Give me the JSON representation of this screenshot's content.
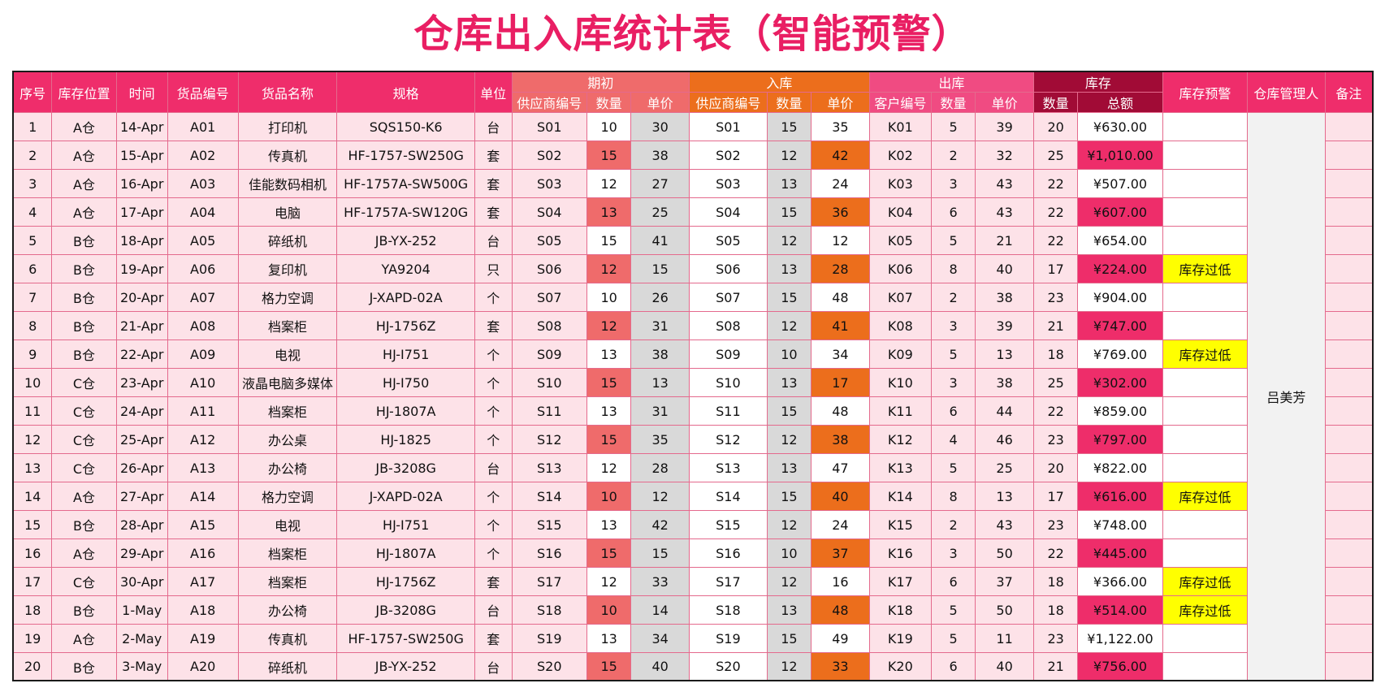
{
  "title": "仓库出入库统计表（智能预警）",
  "headers": {
    "seq": "序号",
    "location": "库存位置",
    "time": "时间",
    "code": "货品编号",
    "name": "货品名称",
    "spec": "规格",
    "unit": "单位",
    "opening": "期初",
    "inbound": "入库",
    "outbound": "出库",
    "stock": "库存",
    "alert": "库存预警",
    "manager": "仓库管理人",
    "remark": "备注",
    "supplier_code": "供应商编号",
    "qty": "数量",
    "price": "单价",
    "customer_code": "客户编号",
    "total": "总额"
  },
  "manager_name": "吕美芳",
  "colors": {
    "title": "#e91e63",
    "header_pink": "#ef2d6b",
    "opening_header": "#ef6b6b",
    "inbound_header": "#ec6e1c",
    "outbound_header": "#f04b82",
    "stock_header": "#a10b36",
    "row_fill": "#fde2e8",
    "highlight_red": "#ef6b6b",
    "highlight_orange": "#ec6e1c",
    "highlight_hot": "#ee2d6a",
    "alert_yellow": "#ffff00"
  },
  "rows": [
    {
      "seq": "1",
      "loc": "A仓",
      "date": "14-Apr",
      "code": "A01",
      "name": "打印机",
      "spec": "SQS150-K6",
      "unit": "台",
      "s_code": "S01",
      "o_qty": "10",
      "o_price": "30",
      "i_code": "S01",
      "i_qty": "15",
      "i_price": "35",
      "c_code": "K01",
      "out_qty": "5",
      "out_price": "39",
      "st_qty": "20",
      "total": "¥630.00",
      "alert": "",
      "o_hl": false,
      "i_hl": false,
      "t_hl": false
    },
    {
      "seq": "2",
      "loc": "A仓",
      "date": "15-Apr",
      "code": "A02",
      "name": "传真机",
      "spec": "HF-1757-SW250G",
      "unit": "套",
      "s_code": "S02",
      "o_qty": "15",
      "o_price": "38",
      "i_code": "S02",
      "i_qty": "12",
      "i_price": "42",
      "c_code": "K02",
      "out_qty": "2",
      "out_price": "32",
      "st_qty": "25",
      "total": "¥1,010.00",
      "alert": "",
      "o_hl": true,
      "i_hl": true,
      "t_hl": true
    },
    {
      "seq": "3",
      "loc": "A仓",
      "date": "16-Apr",
      "code": "A03",
      "name": "佳能数码相机",
      "spec": "HF-1757A-SW500G",
      "unit": "套",
      "s_code": "S03",
      "o_qty": "12",
      "o_price": "27",
      "i_code": "S03",
      "i_qty": "13",
      "i_price": "24",
      "c_code": "K03",
      "out_qty": "3",
      "out_price": "43",
      "st_qty": "22",
      "total": "¥507.00",
      "alert": "",
      "o_hl": false,
      "i_hl": false,
      "t_hl": false
    },
    {
      "seq": "4",
      "loc": "A仓",
      "date": "17-Apr",
      "code": "A04",
      "name": "电脑",
      "spec": "HF-1757A-SW120G",
      "unit": "套",
      "s_code": "S04",
      "o_qty": "13",
      "o_price": "25",
      "i_code": "S04",
      "i_qty": "15",
      "i_price": "36",
      "c_code": "K04",
      "out_qty": "6",
      "out_price": "43",
      "st_qty": "22",
      "total": "¥607.00",
      "alert": "",
      "o_hl": true,
      "i_hl": true,
      "t_hl": true
    },
    {
      "seq": "5",
      "loc": "B仓",
      "date": "18-Apr",
      "code": "A05",
      "name": "碎纸机",
      "spec": "JB-YX-252",
      "unit": "台",
      "s_code": "S05",
      "o_qty": "15",
      "o_price": "41",
      "i_code": "S05",
      "i_qty": "12",
      "i_price": "12",
      "c_code": "K05",
      "out_qty": "5",
      "out_price": "21",
      "st_qty": "22",
      "total": "¥654.00",
      "alert": "",
      "o_hl": false,
      "i_hl": false,
      "t_hl": false
    },
    {
      "seq": "6",
      "loc": "B仓",
      "date": "19-Apr",
      "code": "A06",
      "name": "复印机",
      "spec": "YA9204",
      "unit": "只",
      "s_code": "S06",
      "o_qty": "12",
      "o_price": "15",
      "i_code": "S06",
      "i_qty": "13",
      "i_price": "28",
      "c_code": "K06",
      "out_qty": "8",
      "out_price": "40",
      "st_qty": "17",
      "total": "¥224.00",
      "alert": "库存过低",
      "o_hl": true,
      "i_hl": true,
      "t_hl": true
    },
    {
      "seq": "7",
      "loc": "B仓",
      "date": "20-Apr",
      "code": "A07",
      "name": "格力空调",
      "spec": "J-XAPD-02A",
      "unit": "个",
      "s_code": "S07",
      "o_qty": "10",
      "o_price": "26",
      "i_code": "S07",
      "i_qty": "15",
      "i_price": "48",
      "c_code": "K07",
      "out_qty": "2",
      "out_price": "38",
      "st_qty": "23",
      "total": "¥904.00",
      "alert": "",
      "o_hl": false,
      "i_hl": false,
      "t_hl": false
    },
    {
      "seq": "8",
      "loc": "B仓",
      "date": "21-Apr",
      "code": "A08",
      "name": "档案柜",
      "spec": "HJ-1756Z",
      "unit": "套",
      "s_code": "S08",
      "o_qty": "12",
      "o_price": "31",
      "i_code": "S08",
      "i_qty": "12",
      "i_price": "41",
      "c_code": "K08",
      "out_qty": "3",
      "out_price": "39",
      "st_qty": "21",
      "total": "¥747.00",
      "alert": "",
      "o_hl": true,
      "i_hl": true,
      "t_hl": true
    },
    {
      "seq": "9",
      "loc": "B仓",
      "date": "22-Apr",
      "code": "A09",
      "name": "电视",
      "spec": "HJ-I751",
      "unit": "个",
      "s_code": "S09",
      "o_qty": "13",
      "o_price": "38",
      "i_code": "S09",
      "i_qty": "10",
      "i_price": "34",
      "c_code": "K09",
      "out_qty": "5",
      "out_price": "13",
      "st_qty": "18",
      "total": "¥769.00",
      "alert": "库存过低",
      "o_hl": false,
      "i_hl": false,
      "t_hl": false
    },
    {
      "seq": "10",
      "loc": "C仓",
      "date": "23-Apr",
      "code": "A10",
      "name": "液晶电脑多媒体",
      "spec": "HJ-I750",
      "unit": "个",
      "s_code": "S10",
      "o_qty": "15",
      "o_price": "13",
      "i_code": "S10",
      "i_qty": "13",
      "i_price": "17",
      "c_code": "K10",
      "out_qty": "3",
      "out_price": "38",
      "st_qty": "25",
      "total": "¥302.00",
      "alert": "",
      "o_hl": true,
      "i_hl": true,
      "t_hl": true
    },
    {
      "seq": "11",
      "loc": "C仓",
      "date": "24-Apr",
      "code": "A11",
      "name": "档案柜",
      "spec": "HJ-1807A",
      "unit": "个",
      "s_code": "S11",
      "o_qty": "13",
      "o_price": "31",
      "i_code": "S11",
      "i_qty": "15",
      "i_price": "48",
      "c_code": "K11",
      "out_qty": "6",
      "out_price": "44",
      "st_qty": "22",
      "total": "¥859.00",
      "alert": "",
      "o_hl": false,
      "i_hl": false,
      "t_hl": false
    },
    {
      "seq": "12",
      "loc": "C仓",
      "date": "25-Apr",
      "code": "A12",
      "name": "办公桌",
      "spec": "HJ-1825",
      "unit": "个",
      "s_code": "S12",
      "o_qty": "15",
      "o_price": "35",
      "i_code": "S12",
      "i_qty": "12",
      "i_price": "38",
      "c_code": "K12",
      "out_qty": "4",
      "out_price": "46",
      "st_qty": "23",
      "total": "¥797.00",
      "alert": "",
      "o_hl": true,
      "i_hl": true,
      "t_hl": true
    },
    {
      "seq": "13",
      "loc": "C仓",
      "date": "26-Apr",
      "code": "A13",
      "name": "办公椅",
      "spec": "JB-3208G",
      "unit": "台",
      "s_code": "S13",
      "o_qty": "12",
      "o_price": "28",
      "i_code": "S13",
      "i_qty": "13",
      "i_price": "47",
      "c_code": "K13",
      "out_qty": "5",
      "out_price": "25",
      "st_qty": "20",
      "total": "¥822.00",
      "alert": "",
      "o_hl": false,
      "i_hl": false,
      "t_hl": false
    },
    {
      "seq": "14",
      "loc": "A仓",
      "date": "27-Apr",
      "code": "A14",
      "name": "格力空调",
      "spec": "J-XAPD-02A",
      "unit": "个",
      "s_code": "S14",
      "o_qty": "10",
      "o_price": "12",
      "i_code": "S14",
      "i_qty": "15",
      "i_price": "40",
      "c_code": "K14",
      "out_qty": "8",
      "out_price": "13",
      "st_qty": "17",
      "total": "¥616.00",
      "alert": "库存过低",
      "o_hl": true,
      "i_hl": true,
      "t_hl": true
    },
    {
      "seq": "15",
      "loc": "B仓",
      "date": "28-Apr",
      "code": "A15",
      "name": "电视",
      "spec": "HJ-I751",
      "unit": "个",
      "s_code": "S15",
      "o_qty": "13",
      "o_price": "42",
      "i_code": "S15",
      "i_qty": "12",
      "i_price": "24",
      "c_code": "K15",
      "out_qty": "2",
      "out_price": "43",
      "st_qty": "23",
      "total": "¥748.00",
      "alert": "",
      "o_hl": false,
      "i_hl": false,
      "t_hl": false
    },
    {
      "seq": "16",
      "loc": "A仓",
      "date": "29-Apr",
      "code": "A16",
      "name": "档案柜",
      "spec": "HJ-1807A",
      "unit": "个",
      "s_code": "S16",
      "o_qty": "15",
      "o_price": "15",
      "i_code": "S16",
      "i_qty": "10",
      "i_price": "37",
      "c_code": "K16",
      "out_qty": "3",
      "out_price": "50",
      "st_qty": "22",
      "total": "¥445.00",
      "alert": "",
      "o_hl": true,
      "i_hl": true,
      "t_hl": true
    },
    {
      "seq": "17",
      "loc": "C仓",
      "date": "30-Apr",
      "code": "A17",
      "name": "档案柜",
      "spec": "HJ-1756Z",
      "unit": "套",
      "s_code": "S17",
      "o_qty": "12",
      "o_price": "33",
      "i_code": "S17",
      "i_qty": "12",
      "i_price": "16",
      "c_code": "K17",
      "out_qty": "6",
      "out_price": "37",
      "st_qty": "18",
      "total": "¥366.00",
      "alert": "库存过低",
      "o_hl": false,
      "i_hl": false,
      "t_hl": false
    },
    {
      "seq": "18",
      "loc": "B仓",
      "date": "1-May",
      "code": "A18",
      "name": "办公椅",
      "spec": "JB-3208G",
      "unit": "台",
      "s_code": "S18",
      "o_qty": "10",
      "o_price": "14",
      "i_code": "S18",
      "i_qty": "13",
      "i_price": "48",
      "c_code": "K18",
      "out_qty": "5",
      "out_price": "50",
      "st_qty": "18",
      "total": "¥514.00",
      "alert": "库存过低",
      "o_hl": true,
      "i_hl": true,
      "t_hl": true
    },
    {
      "seq": "19",
      "loc": "A仓",
      "date": "2-May",
      "code": "A19",
      "name": "传真机",
      "spec": "HF-1757-SW250G",
      "unit": "套",
      "s_code": "S19",
      "o_qty": "13",
      "o_price": "34",
      "i_code": "S19",
      "i_qty": "15",
      "i_price": "49",
      "c_code": "K19",
      "out_qty": "5",
      "out_price": "11",
      "st_qty": "23",
      "total": "¥1,122.00",
      "alert": "",
      "o_hl": false,
      "i_hl": false,
      "t_hl": false
    },
    {
      "seq": "20",
      "loc": "B仓",
      "date": "3-May",
      "code": "A20",
      "name": "碎纸机",
      "spec": "JB-YX-252",
      "unit": "台",
      "s_code": "S20",
      "o_qty": "15",
      "o_price": "40",
      "i_code": "S20",
      "i_qty": "12",
      "i_price": "33",
      "c_code": "K20",
      "out_qty": "6",
      "out_price": "40",
      "st_qty": "21",
      "total": "¥756.00",
      "alert": "",
      "o_hl": true,
      "i_hl": true,
      "t_hl": true
    }
  ]
}
